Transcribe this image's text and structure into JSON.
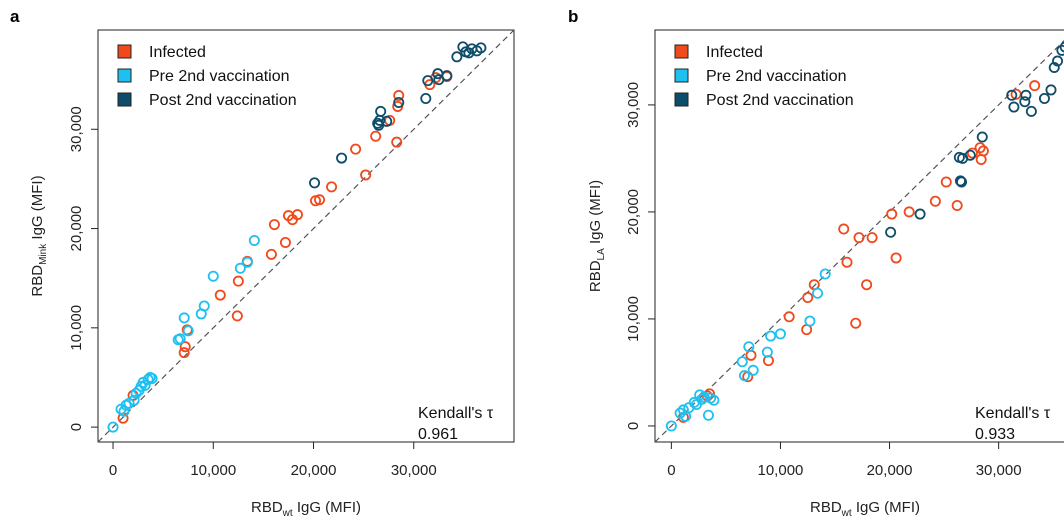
{
  "colors": {
    "infected": "#f0491b",
    "pre": "#1ec0f2",
    "post": "#0e4d6a"
  },
  "chart_data": [
    {
      "type": "scatter",
      "panel": "a",
      "xlabel_main": "RBD",
      "xlabel_sub": "wt",
      "xlabel_rest": " IgG (MFI)",
      "ylabel_main": "RBD",
      "ylabel_sub": "Mink",
      "ylabel_rest": " IgG (MFI)",
      "xlim": [
        -1500,
        40000
      ],
      "ylim": [
        -1500,
        40000
      ],
      "xticks": [
        0,
        10000,
        20000,
        30000
      ],
      "xtick_labels": [
        "0",
        "10,000",
        "20,000",
        "30,000"
      ],
      "yticks": [
        0,
        10000,
        20000,
        30000
      ],
      "ytick_labels": [
        "0",
        "10,000",
        "20,000",
        "30,000"
      ],
      "legend_position": "top-left",
      "annotation_title": "Kendall's τ",
      "annotation_value": "0.961",
      "series": [
        {
          "name": "Infected",
          "color_key": "infected",
          "points": [
            [
              1000,
              900
            ],
            [
              2000,
              3200
            ],
            [
              7100,
              7500
            ],
            [
              7200,
              8100
            ],
            [
              7400,
              9800
            ],
            [
              10700,
              13300
            ],
            [
              12400,
              11200
            ],
            [
              12500,
              14700
            ],
            [
              13400,
              16700
            ],
            [
              15800,
              17400
            ],
            [
              16100,
              20400
            ],
            [
              17200,
              18600
            ],
            [
              17500,
              21300
            ],
            [
              17900,
              20900
            ],
            [
              18400,
              21400
            ],
            [
              20200,
              22800
            ],
            [
              20600,
              22900
            ],
            [
              21800,
              24200
            ],
            [
              24200,
              28000
            ],
            [
              25200,
              25400
            ],
            [
              26200,
              29300
            ],
            [
              27600,
              30900
            ],
            [
              28300,
              28700
            ],
            [
              28400,
              32300
            ],
            [
              28500,
              33400
            ],
            [
              31600,
              34500
            ],
            [
              32200,
              35200
            ],
            [
              33300,
              35300
            ]
          ]
        },
        {
          "name": "Pre 2nd vaccination",
          "color_key": "pre",
          "points": [
            [
              0,
              0
            ],
            [
              800,
              1800
            ],
            [
              1100,
              1600
            ],
            [
              1300,
              2200
            ],
            [
              1600,
              2400
            ],
            [
              2100,
              2700
            ],
            [
              2300,
              3400
            ],
            [
              2600,
              3700
            ],
            [
              2800,
              4100
            ],
            [
              3000,
              4500
            ],
            [
              3200,
              4200
            ],
            [
              3500,
              4800
            ],
            [
              3700,
              5000
            ],
            [
              3900,
              4900
            ],
            [
              6500,
              8800
            ],
            [
              6700,
              8900
            ],
            [
              7100,
              11000
            ],
            [
              7500,
              9700
            ],
            [
              8800,
              11400
            ],
            [
              9100,
              12200
            ],
            [
              10000,
              15200
            ],
            [
              12700,
              16000
            ],
            [
              13400,
              16600
            ],
            [
              14100,
              18800
            ]
          ]
        },
        {
          "name": "Post 2nd vaccination",
          "color_key": "post",
          "points": [
            [
              20100,
              24600
            ],
            [
              22800,
              27100
            ],
            [
              26400,
              30600
            ],
            [
              26500,
              30400
            ],
            [
              26600,
              30900
            ],
            [
              26700,
              31800
            ],
            [
              27300,
              30800
            ],
            [
              28500,
              32700
            ],
            [
              31200,
              33100
            ],
            [
              31400,
              34900
            ],
            [
              32400,
              35600
            ],
            [
              32500,
              35000
            ],
            [
              33300,
              35400
            ],
            [
              34300,
              37300
            ],
            [
              34900,
              38300
            ],
            [
              35200,
              37800
            ],
            [
              35500,
              37700
            ],
            [
              35800,
              38100
            ],
            [
              36300,
              37900
            ],
            [
              36700,
              38200
            ]
          ]
        }
      ]
    },
    {
      "type": "scatter",
      "panel": "b",
      "xlabel_main": "RBD",
      "xlabel_sub": "wt",
      "xlabel_rest": " IgG (MFI)",
      "ylabel_main": "RBD",
      "ylabel_sub": "LA",
      "ylabel_rest": " IgG (MFI)",
      "xlim": [
        -1500,
        37000
      ],
      "ylim": [
        -1500,
        37000
      ],
      "xticks": [
        0,
        10000,
        20000,
        30000
      ],
      "xtick_labels": [
        "0",
        "10,000",
        "20,000",
        "30,000"
      ],
      "yticks": [
        0,
        10000,
        20000,
        30000
      ],
      "ytick_labels": [
        "0",
        "10,000",
        "20,000",
        "30,000"
      ],
      "legend_position": "top-left",
      "annotation_title": "Kendall's τ",
      "annotation_value": "0.933",
      "series": [
        {
          "name": "Infected",
          "color_key": "infected",
          "points": [
            [
              1100,
              800
            ],
            [
              3300,
              2800
            ],
            [
              3500,
              3000
            ],
            [
              7000,
              4600
            ],
            [
              7300,
              6600
            ],
            [
              8900,
              6100
            ],
            [
              10800,
              10200
            ],
            [
              12400,
              9000
            ],
            [
              12500,
              12000
            ],
            [
              13100,
              13200
            ],
            [
              15800,
              18400
            ],
            [
              16100,
              15300
            ],
            [
              16900,
              9600
            ],
            [
              17200,
              17600
            ],
            [
              17900,
              13200
            ],
            [
              18400,
              17600
            ],
            [
              20200,
              19800
            ],
            [
              20600,
              15700
            ],
            [
              21800,
              20000
            ],
            [
              24200,
              21000
            ],
            [
              25200,
              22800
            ],
            [
              26200,
              20600
            ],
            [
              27600,
              25500
            ],
            [
              28300,
              26000
            ],
            [
              28400,
              24900
            ],
            [
              28600,
              25700
            ],
            [
              31600,
              31000
            ],
            [
              33300,
              31800
            ]
          ]
        },
        {
          "name": "Pre 2nd vaccination",
          "color_key": "pre",
          "points": [
            [
              0,
              0
            ],
            [
              800,
              1200
            ],
            [
              1100,
              1500
            ],
            [
              1300,
              900
            ],
            [
              1600,
              1700
            ],
            [
              2100,
              2200
            ],
            [
              2300,
              2000
            ],
            [
              2600,
              2900
            ],
            [
              2800,
              2500
            ],
            [
              3000,
              2700
            ],
            [
              3400,
              1000
            ],
            [
              3600,
              2600
            ],
            [
              3900,
              2400
            ],
            [
              6500,
              6000
            ],
            [
              6700,
              4700
            ],
            [
              7100,
              7400
            ],
            [
              7500,
              5200
            ],
            [
              8800,
              6900
            ],
            [
              9100,
              8400
            ],
            [
              10000,
              8600
            ],
            [
              12700,
              9800
            ],
            [
              13400,
              12400
            ],
            [
              14100,
              14200
            ]
          ]
        },
        {
          "name": "Post 2nd vaccination",
          "color_key": "post",
          "points": [
            [
              20100,
              18100
            ],
            [
              22800,
              19800
            ],
            [
              26400,
              25100
            ],
            [
              26500,
              22900
            ],
            [
              26600,
              22800
            ],
            [
              26700,
              25000
            ],
            [
              27400,
              25300
            ],
            [
              28500,
              27000
            ],
            [
              31200,
              30900
            ],
            [
              31400,
              29800
            ],
            [
              32400,
              30300
            ],
            [
              32500,
              30900
            ],
            [
              33000,
              29400
            ],
            [
              34200,
              30600
            ],
            [
              34800,
              31400
            ],
            [
              35100,
              33500
            ],
            [
              35400,
              34100
            ],
            [
              35800,
              35100
            ],
            [
              36100,
              35400
            ],
            [
              36700,
              35800
            ]
          ]
        }
      ]
    }
  ]
}
